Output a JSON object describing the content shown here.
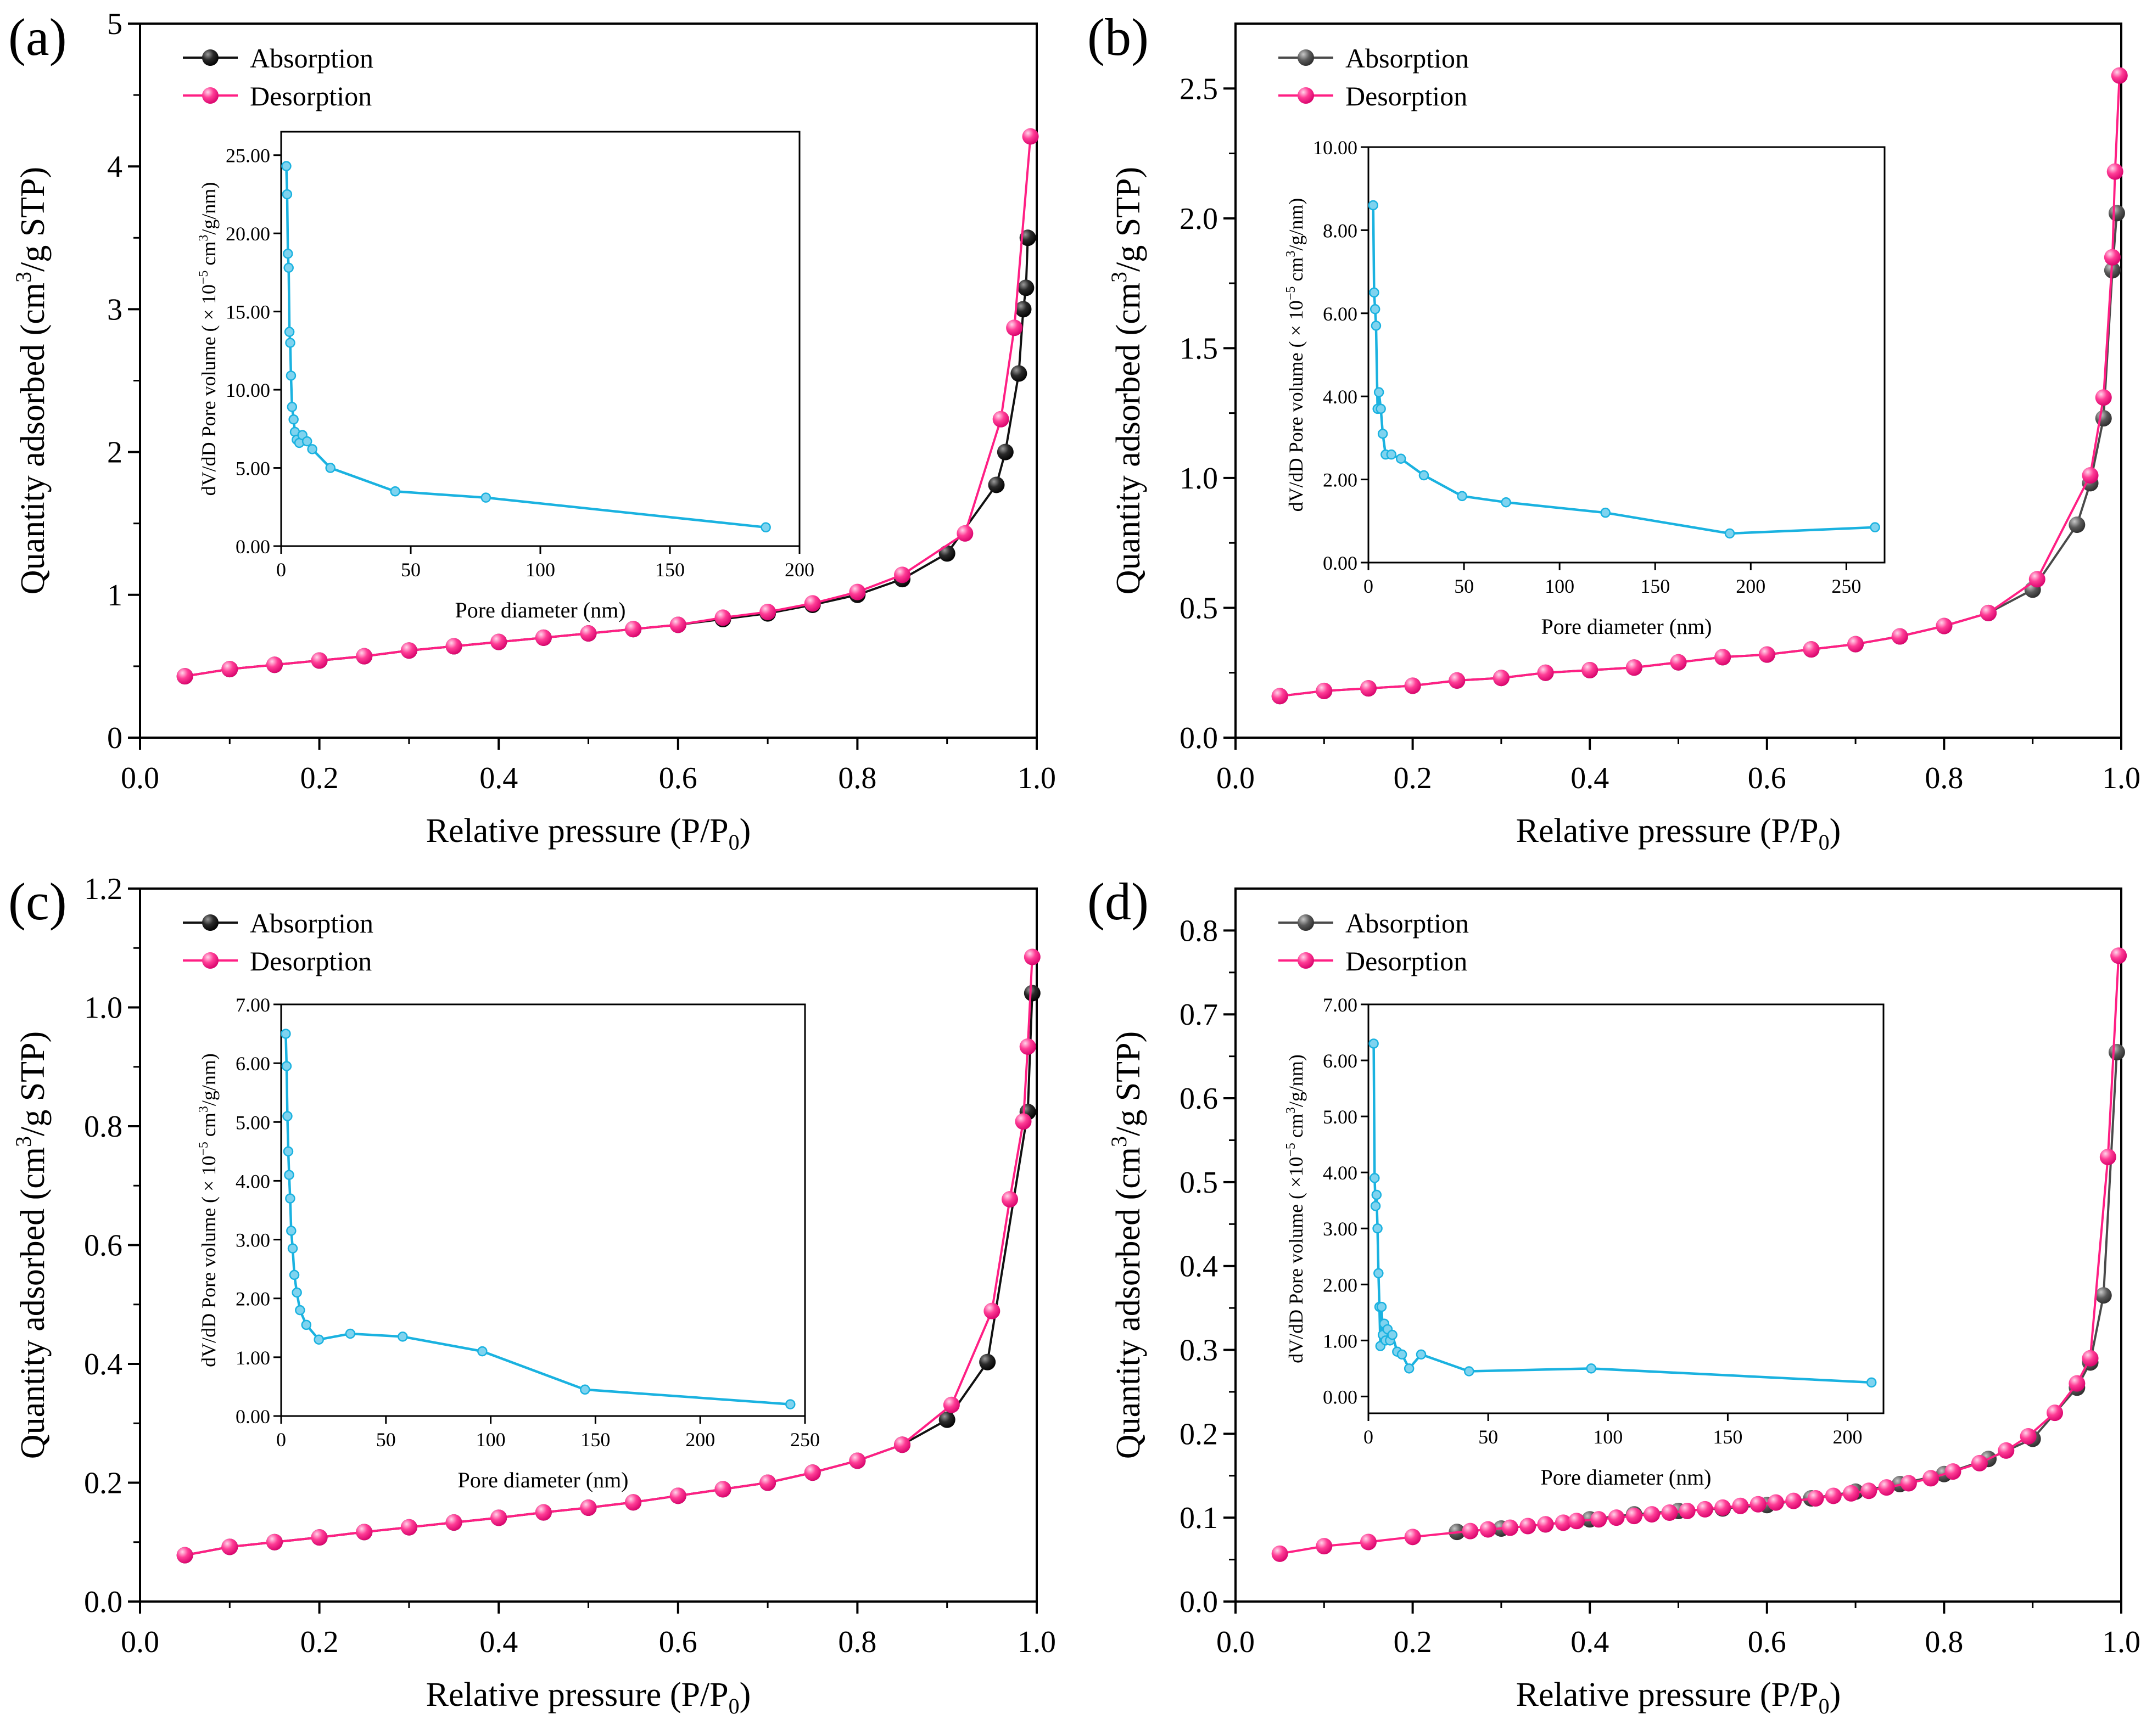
{
  "figure": {
    "x_label": "Relative pressure (P/P",
    "x_label_sub": "0",
    "x_label_end": ")",
    "y_label_pre": "Quantity adsorbed (cm",
    "y_label_sup": "3",
    "y_label_post": "/g STP)",
    "inset_xlabel": "Pore diameter (nm)",
    "legend_absorption": "Absorption",
    "legend_desorption": "Desorption"
  },
  "colors": {
    "absorption_dark": "#111111",
    "absorption_gray": "#4a4a4a",
    "desorption": "#ff1f84",
    "inset_line": "#1ab2e0"
  },
  "chart_data": [
    {
      "panel": "(a)",
      "type": "line",
      "xlim": [
        0,
        1.0
      ],
      "ylim": [
        0,
        5
      ],
      "xticks": [
        "0.0",
        "0.2",
        "0.4",
        "0.6",
        "0.8",
        "1.0"
      ],
      "xtick_vals": [
        0,
        0.2,
        0.4,
        0.6,
        0.8,
        1.0
      ],
      "yticks": [
        "0",
        "1",
        "2",
        "3",
        "4",
        "5"
      ],
      "ytick_vals": [
        0,
        1,
        2,
        3,
        4,
        5
      ],
      "absorption_color": "#111111",
      "series": [
        {
          "name": "Absorption",
          "x": [
            0.05,
            0.1,
            0.15,
            0.2,
            0.25,
            0.3,
            0.35,
            0.4,
            0.45,
            0.5,
            0.55,
            0.6,
            0.65,
            0.7,
            0.75,
            0.8,
            0.85,
            0.9,
            0.955,
            0.965,
            0.98,
            0.985,
            0.988,
            0.99
          ],
          "y": [
            0.43,
            0.48,
            0.51,
            0.54,
            0.57,
            0.61,
            0.64,
            0.67,
            0.7,
            0.73,
            0.76,
            0.79,
            0.83,
            0.87,
            0.93,
            1.0,
            1.11,
            1.29,
            1.77,
            2.0,
            2.55,
            3.0,
            3.15,
            3.5
          ]
        },
        {
          "name": "Desorption",
          "x": [
            0.05,
            0.1,
            0.15,
            0.2,
            0.25,
            0.3,
            0.35,
            0.4,
            0.45,
            0.5,
            0.55,
            0.6,
            0.65,
            0.7,
            0.75,
            0.8,
            0.85,
            0.92,
            0.96,
            0.975,
            0.993
          ],
          "y": [
            0.43,
            0.48,
            0.51,
            0.54,
            0.57,
            0.61,
            0.64,
            0.67,
            0.7,
            0.73,
            0.76,
            0.79,
            0.84,
            0.88,
            0.94,
            1.02,
            1.14,
            1.43,
            2.23,
            2.87,
            4.21
          ]
        }
      ],
      "inset": {
        "xlim": [
          0,
          200
        ],
        "ylim": [
          0,
          26.5
        ],
        "xticks": [
          "0",
          "50",
          "100",
          "150",
          "200"
        ],
        "xtick_vals": [
          0,
          50,
          100,
          150,
          200
        ],
        "yticks": [
          "0.00",
          "5.00",
          "10.00",
          "15.00",
          "20.00",
          "25.00"
        ],
        "ytick_vals": [
          0,
          5,
          10,
          15,
          20,
          25
        ],
        "ylabel": "dV/dD Pore volume ( × 10",
        "ylabel_exp": "−5",
        "ylabel_mid": " cm",
        "ylabel_sup": "3",
        "ylabel_end": "/g/nm)",
        "x": [
          2.0,
          2.3,
          2.6,
          2.9,
          3.2,
          3.5,
          3.8,
          4.2,
          4.8,
          5.3,
          6.0,
          7.0,
          8.2,
          10,
          12,
          19,
          44,
          79,
          187
        ],
        "y": [
          24.3,
          22.5,
          18.7,
          17.8,
          13.7,
          13.0,
          10.9,
          8.9,
          8.1,
          7.3,
          6.8,
          6.6,
          7.1,
          6.7,
          6.2,
          5.0,
          3.5,
          3.1,
          1.2
        ]
      }
    },
    {
      "panel": "(b)",
      "type": "line",
      "xlim": [
        0,
        1.0
      ],
      "ylim": [
        0,
        2.75
      ],
      "xticks": [
        "0.0",
        "0.2",
        "0.4",
        "0.6",
        "0.8",
        "1.0"
      ],
      "xtick_vals": [
        0,
        0.2,
        0.4,
        0.6,
        0.8,
        1.0
      ],
      "yticks": [
        "0.0",
        "0.5",
        "1.0",
        "1.5",
        "2.0",
        "2.5"
      ],
      "ytick_vals": [
        0,
        0.5,
        1.0,
        1.5,
        2.0,
        2.5
      ],
      "absorption_color": "#4a4a4a",
      "series": [
        {
          "name": "Absorption",
          "x": [
            0.05,
            0.1,
            0.15,
            0.2,
            0.25,
            0.3,
            0.35,
            0.4,
            0.45,
            0.5,
            0.55,
            0.6,
            0.65,
            0.7,
            0.75,
            0.8,
            0.85,
            0.9,
            0.95,
            0.965,
            0.98,
            0.99,
            0.995
          ],
          "y": [
            0.16,
            0.18,
            0.19,
            0.2,
            0.22,
            0.23,
            0.25,
            0.26,
            0.27,
            0.29,
            0.31,
            0.32,
            0.34,
            0.36,
            0.39,
            0.43,
            0.48,
            0.57,
            0.82,
            0.98,
            1.23,
            1.8,
            2.02
          ]
        },
        {
          "name": "Desorption",
          "x": [
            0.05,
            0.1,
            0.15,
            0.2,
            0.25,
            0.3,
            0.35,
            0.4,
            0.45,
            0.5,
            0.55,
            0.6,
            0.65,
            0.7,
            0.75,
            0.8,
            0.85,
            0.905,
            0.965,
            0.98,
            0.99,
            0.993,
            0.998
          ],
          "y": [
            0.16,
            0.18,
            0.19,
            0.2,
            0.22,
            0.23,
            0.25,
            0.26,
            0.27,
            0.29,
            0.31,
            0.32,
            0.34,
            0.36,
            0.39,
            0.43,
            0.48,
            0.61,
            1.01,
            1.31,
            1.85,
            2.18,
            2.55
          ]
        }
      ],
      "inset": {
        "xlim": [
          0,
          270
        ],
        "ylim": [
          0,
          10
        ],
        "xticks": [
          "0",
          "50",
          "100",
          "150",
          "200",
          "250"
        ],
        "xtick_vals": [
          0,
          50,
          100,
          150,
          200,
          250
        ],
        "yticks": [
          "0.00",
          "2.00",
          "4.00",
          "6.00",
          "8.00",
          "10.00"
        ],
        "ytick_vals": [
          0,
          2,
          4,
          6,
          8,
          10
        ],
        "ylabel": "dV/dD Pore volume ( × 10",
        "ylabel_exp": "−5",
        "ylabel_mid": " cm",
        "ylabel_sup": "3",
        "ylabel_end": "/g/nm)",
        "x": [
          2.5,
          3.0,
          3.5,
          4.0,
          4.8,
          5.5,
          6.5,
          7.5,
          9,
          12,
          17,
          29,
          49,
          72,
          124,
          189,
          265
        ],
        "y": [
          8.6,
          6.5,
          6.1,
          5.7,
          3.7,
          4.1,
          3.7,
          3.1,
          2.6,
          2.6,
          2.5,
          2.1,
          1.6,
          1.45,
          1.2,
          0.7,
          0.85
        ]
      }
    },
    {
      "panel": "(c)",
      "type": "line",
      "xlim": [
        0,
        1.0
      ],
      "ylim": [
        0,
        1.2
      ],
      "xticks": [
        "0.0",
        "0.2",
        "0.4",
        "0.6",
        "0.8",
        "1.0"
      ],
      "xtick_vals": [
        0,
        0.2,
        0.4,
        0.6,
        0.8,
        1.0
      ],
      "yticks": [
        "0.0",
        "0.2",
        "0.4",
        "0.6",
        "0.8",
        "1.0",
        "1.2"
      ],
      "ytick_vals": [
        0,
        0.2,
        0.4,
        0.6,
        0.8,
        1.0,
        1.2
      ],
      "absorption_color": "#111111",
      "series": [
        {
          "name": "Absorption",
          "x": [
            0.05,
            0.1,
            0.15,
            0.2,
            0.25,
            0.3,
            0.35,
            0.4,
            0.45,
            0.5,
            0.55,
            0.6,
            0.65,
            0.7,
            0.75,
            0.8,
            0.85,
            0.9,
            0.945,
            0.99,
            0.995
          ],
          "y": [
            0.078,
            0.092,
            0.1,
            0.108,
            0.117,
            0.125,
            0.133,
            0.141,
            0.15,
            0.158,
            0.167,
            0.178,
            0.189,
            0.2,
            0.217,
            0.237,
            0.264,
            0.306,
            0.403,
            0.824,
            1.024
          ]
        },
        {
          "name": "Desorption",
          "x": [
            0.05,
            0.1,
            0.15,
            0.2,
            0.25,
            0.3,
            0.35,
            0.4,
            0.45,
            0.5,
            0.55,
            0.6,
            0.65,
            0.7,
            0.75,
            0.8,
            0.85,
            0.905,
            0.95,
            0.97,
            0.985,
            0.99,
            0.995
          ],
          "y": [
            0.078,
            0.092,
            0.1,
            0.108,
            0.117,
            0.125,
            0.133,
            0.141,
            0.15,
            0.158,
            0.167,
            0.178,
            0.189,
            0.2,
            0.217,
            0.237,
            0.264,
            0.331,
            0.489,
            0.677,
            0.808,
            0.934,
            1.085
          ]
        }
      ],
      "inset": {
        "xlim": [
          0,
          250
        ],
        "ylim": [
          0,
          7
        ],
        "xticks": [
          "0",
          "50",
          "100",
          "150",
          "200",
          "250"
        ],
        "xtick_vals": [
          0,
          50,
          100,
          150,
          200,
          250
        ],
        "yticks": [
          "0.00",
          "1.00",
          "2.00",
          "3.00",
          "4.00",
          "5.00",
          "6.00",
          "7.00"
        ],
        "ytick_vals": [
          0,
          1,
          2,
          3,
          4,
          5,
          6,
          7
        ],
        "ylabel": "dV/dD Pore volume ( × 10",
        "ylabel_exp": "−5",
        "ylabel_mid": " cm",
        "ylabel_sup": "3",
        "ylabel_end": "/g/nm)",
        "x": [
          2.2,
          2.6,
          3.0,
          3.4,
          3.8,
          4.3,
          4.8,
          5.5,
          6.3,
          7.5,
          9,
          12,
          18,
          33,
          58,
          96,
          145,
          243
        ],
        "y": [
          6.5,
          5.95,
          5.1,
          4.5,
          4.1,
          3.7,
          3.15,
          2.85,
          2.4,
          2.1,
          1.8,
          1.55,
          1.3,
          1.4,
          1.35,
          1.1,
          0.45,
          0.2
        ]
      }
    },
    {
      "panel": "(d)",
      "type": "line",
      "xlim": [
        0,
        1.0
      ],
      "ylim": [
        0,
        0.85
      ],
      "xticks": [
        "0.0",
        "0.2",
        "0.4",
        "0.6",
        "0.8",
        "1.0"
      ],
      "xtick_vals": [
        0,
        0.2,
        0.4,
        0.6,
        0.8,
        1.0
      ],
      "yticks": [
        "0.0",
        "0.1",
        "0.2",
        "0.3",
        "0.4",
        "0.5",
        "0.6",
        "0.7",
        "0.8"
      ],
      "ytick_vals": [
        0,
        0.1,
        0.2,
        0.3,
        0.4,
        0.5,
        0.6,
        0.7,
        0.8
      ],
      "absorption_color": "#4a4a4a",
      "series": [
        {
          "name": "Absorption",
          "x": [
            0.25,
            0.3,
            0.35,
            0.4,
            0.45,
            0.5,
            0.55,
            0.6,
            0.65,
            0.7,
            0.75,
            0.8,
            0.85,
            0.9,
            0.95,
            0.965,
            0.98,
            0.995
          ],
          "y": [
            0.083,
            0.087,
            0.092,
            0.098,
            0.104,
            0.108,
            0.111,
            0.115,
            0.123,
            0.131,
            0.14,
            0.152,
            0.17,
            0.194,
            0.255,
            0.285,
            0.365,
            0.655
          ]
        },
        {
          "name": "Desorption",
          "x": [
            0.05,
            0.1,
            0.15,
            0.2,
            0.265,
            0.285,
            0.31,
            0.33,
            0.35,
            0.37,
            0.385,
            0.41,
            0.43,
            0.45,
            0.47,
            0.49,
            0.51,
            0.53,
            0.55,
            0.57,
            0.59,
            0.61,
            0.63,
            0.655,
            0.675,
            0.695,
            0.715,
            0.735,
            0.76,
            0.785,
            0.81,
            0.84,
            0.87,
            0.895,
            0.925,
            0.95,
            0.965,
            0.985,
            0.997
          ],
          "y": [
            0.057,
            0.066,
            0.071,
            0.077,
            0.084,
            0.086,
            0.088,
            0.09,
            0.092,
            0.094,
            0.096,
            0.098,
            0.1,
            0.102,
            0.104,
            0.106,
            0.108,
            0.11,
            0.112,
            0.114,
            0.116,
            0.118,
            0.12,
            0.123,
            0.126,
            0.129,
            0.132,
            0.136,
            0.141,
            0.147,
            0.155,
            0.165,
            0.18,
            0.197,
            0.225,
            0.26,
            0.29,
            0.53,
            0.77
          ]
        }
      ],
      "inset": {
        "xlim": [
          0,
          215
        ],
        "ylim": [
          -0.3,
          7
        ],
        "xticks": [
          "0",
          "50",
          "100",
          "150",
          "200"
        ],
        "xtick_vals": [
          0,
          50,
          100,
          150,
          200
        ],
        "yticks": [
          "0.00",
          "1.00",
          "2.00",
          "3.00",
          "4.00",
          "5.00",
          "6.00",
          "7.00"
        ],
        "ytick_vals": [
          0,
          1,
          2,
          3,
          4,
          5,
          6,
          7
        ],
        "ylabel": "dV/dD Pore volume ( ×10",
        "ylabel_exp": "−5",
        "ylabel_mid": " cm",
        "ylabel_sup": "3",
        "ylabel_end": "/g/nm)",
        "x": [
          2.2,
          2.6,
          3.0,
          3.4,
          3.8,
          4.2,
          4.6,
          5.0,
          5.5,
          6.0,
          6.6,
          7.2,
          8,
          9,
          10,
          12,
          14,
          17,
          22,
          42,
          93,
          210
        ],
        "y": [
          6.3,
          3.9,
          3.4,
          3.6,
          3.0,
          2.2,
          1.6,
          0.9,
          1.6,
          1.1,
          1.3,
          1.0,
          1.2,
          1.0,
          1.1,
          0.8,
          0.75,
          0.5,
          0.75,
          0.45,
          0.5,
          0.25
        ]
      }
    }
  ]
}
